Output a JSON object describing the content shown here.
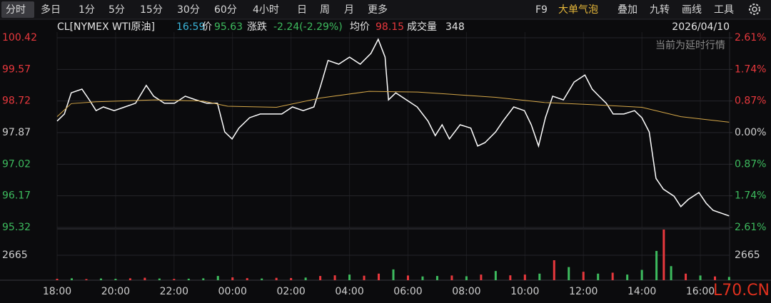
{
  "toolbar": {
    "tabs": [
      "分时",
      "多日",
      "1分",
      "5分",
      "15分",
      "30分",
      "60分",
      "4小时",
      "日",
      "周",
      "月",
      "更多"
    ],
    "tools": [
      "F9",
      "大单气泡",
      "叠加",
      "九转",
      "画线",
      "工具"
    ]
  },
  "header": {
    "symbol": "CL[NYMEX WTI原油]",
    "time": "16:59",
    "price_label": "价",
    "price": "95.63",
    "change_label": "涨跌",
    "change": "-2.24(-2.29%)",
    "avg_label": "均价",
    "avg": "98.15",
    "volume_label": "成交量",
    "volume": "348",
    "date": "2026/04/10",
    "notice": "当前为延时行情"
  },
  "watermark": "L70.CN",
  "chart_data": [
    {
      "type": "line",
      "xlim": [
        0,
        1380
      ],
      "xticks": [
        {
          "value": 0,
          "label": "18:00"
        },
        {
          "value": 120,
          "label": "20:00"
        },
        {
          "value": 240,
          "label": "22:00"
        },
        {
          "value": 360,
          "label": "00:00"
        },
        {
          "value": 480,
          "label": "02:00"
        },
        {
          "value": 600,
          "label": "04:00"
        },
        {
          "value": 720,
          "label": "06:00"
        },
        {
          "value": 840,
          "label": "08:00"
        },
        {
          "value": 960,
          "label": "10:00"
        },
        {
          "value": 1080,
          "label": "12:00"
        },
        {
          "value": 1200,
          "label": "14:00"
        },
        {
          "value": 1320,
          "label": "16:00"
        }
      ],
      "ylim": [
        95.32,
        100.42
      ],
      "yticks": [
        100.42,
        99.57,
        98.72,
        97.87,
        97.02,
        96.17,
        95.32
      ],
      "y2lim": [
        -2.61,
        2.61
      ],
      "y2ticks": [
        {
          "value": 2.61,
          "label": "2.61%"
        },
        {
          "value": 1.74,
          "label": "1.74%"
        },
        {
          "value": 0.87,
          "label": "0.87%"
        },
        {
          "value": 0,
          "label": "0.00%"
        },
        {
          "value": -0.87,
          "label": "0.87%"
        },
        {
          "value": -1.74,
          "label": "1.74%"
        },
        {
          "value": -2.61,
          "label": "2.61%"
        }
      ],
      "grid": true,
      "up_color": "#e8383d",
      "down_color": "#3dbb5e",
      "flat_color": "#cfcfcf",
      "series": [
        {
          "color": "#ffffff",
          "x": [
            0,
            15,
            29,
            51,
            66,
            80,
            95,
            117,
            139,
            161,
            183,
            198,
            220,
            241,
            263,
            285,
            307,
            329,
            344,
            359,
            373,
            395,
            417,
            439,
            461,
            483,
            505,
            527,
            541,
            556,
            578,
            600,
            622,
            644,
            659,
            673,
            680,
            695,
            717,
            739,
            761,
            776,
            790,
            805,
            827,
            849,
            863,
            878,
            900,
            915,
            937,
            959,
            973,
            988,
            1002,
            1017,
            1039,
            1061,
            1083,
            1098,
            1112,
            1127,
            1141,
            1163,
            1185,
            1200,
            1215,
            1229,
            1244,
            1266,
            1280,
            1295,
            1317,
            1332,
            1346,
            1368,
            1379
          ],
          "values": [
            98.18,
            98.37,
            98.94,
            99.04,
            98.75,
            98.46,
            98.56,
            98.46,
            98.56,
            98.66,
            99.14,
            98.85,
            98.66,
            98.66,
            98.85,
            98.75,
            98.66,
            98.66,
            97.89,
            97.7,
            97.99,
            98.27,
            98.37,
            98.37,
            98.37,
            98.56,
            98.46,
            98.56,
            99.14,
            99.81,
            99.71,
            99.9,
            99.71,
            100.0,
            100.38,
            99.9,
            98.75,
            98.94,
            98.75,
            98.56,
            98.18,
            97.79,
            98.08,
            97.7,
            98.08,
            97.99,
            97.51,
            97.6,
            97.89,
            98.18,
            98.56,
            98.46,
            98.08,
            97.51,
            98.27,
            98.85,
            98.75,
            99.23,
            99.42,
            99.04,
            98.85,
            98.66,
            98.37,
            98.37,
            98.46,
            98.27,
            97.89,
            96.64,
            96.35,
            96.16,
            95.88,
            96.07,
            96.26,
            95.97,
            95.78,
            95.68,
            95.63
          ]
        },
        {
          "color": "#d6a849",
          "x": [
            0,
            29,
            80,
            200,
            300,
            350,
            450,
            540,
            640,
            740,
            900,
            1000,
            1100,
            1200,
            1280,
            1379
          ],
          "values": [
            98.3,
            98.65,
            98.7,
            98.75,
            98.72,
            98.58,
            98.55,
            98.8,
            98.98,
            98.96,
            98.82,
            98.68,
            98.62,
            98.55,
            98.3,
            98.15
          ]
        }
      ]
    },
    {
      "type": "bar",
      "xlim": [
        0,
        1380
      ],
      "ylim": [
        0,
        5400
      ],
      "yticks": [
        2665
      ],
      "series": [
        {
          "x": [
            0,
            30,
            60,
            90,
            120,
            150,
            180,
            210,
            240,
            270,
            300,
            330,
            360,
            390,
            420,
            450,
            480,
            510,
            540,
            570,
            600,
            630,
            660,
            690,
            720,
            750,
            780,
            810,
            840,
            870,
            900,
            930,
            960,
            990,
            1020,
            1050,
            1080,
            1110,
            1140,
            1170,
            1200,
            1230,
            1245,
            1260,
            1290,
            1320,
            1350,
            1379
          ],
          "values": [
            150,
            200,
            120,
            180,
            150,
            200,
            260,
            180,
            140,
            160,
            200,
            450,
            300,
            220,
            180,
            250,
            230,
            280,
            450,
            520,
            600,
            480,
            700,
            1150,
            500,
            400,
            450,
            500,
            420,
            600,
            980,
            520,
            600,
            700,
            2130,
            1400,
            900,
            700,
            800,
            600,
            1100,
            3120,
            5400,
            1500,
            700,
            500,
            400,
            348
          ],
          "colors": [
            "#e8383d",
            "#3dbb5e",
            "#e8383d",
            "#3dbb5e",
            "#3dbb5e",
            "#e8383d",
            "#e8383d",
            "#3dbb5e",
            "#e8383d",
            "#3dbb5e",
            "#3dbb5e",
            "#3dbb5e",
            "#e8383d",
            "#e8383d",
            "#3dbb5e",
            "#e8383d",
            "#e8383d",
            "#3dbb5e",
            "#e8383d",
            "#e8383d",
            "#3dbb5e",
            "#e8383d",
            "#e8383d",
            "#3dbb5e",
            "#e8383d",
            "#3dbb5e",
            "#3dbb5e",
            "#e8383d",
            "#3dbb5e",
            "#e8383d",
            "#3dbb5e",
            "#e8383d",
            "#e8383d",
            "#3dbb5e",
            "#e8383d",
            "#3dbb5e",
            "#e8383d",
            "#3dbb5e",
            "#e8383d",
            "#3dbb5e",
            "#3dbb5e",
            "#3dbb5e",
            "#e8383d",
            "#3dbb5e",
            "#e8383d",
            "#3dbb5e",
            "#e8383d",
            "#3dbb5e"
          ]
        }
      ]
    }
  ]
}
